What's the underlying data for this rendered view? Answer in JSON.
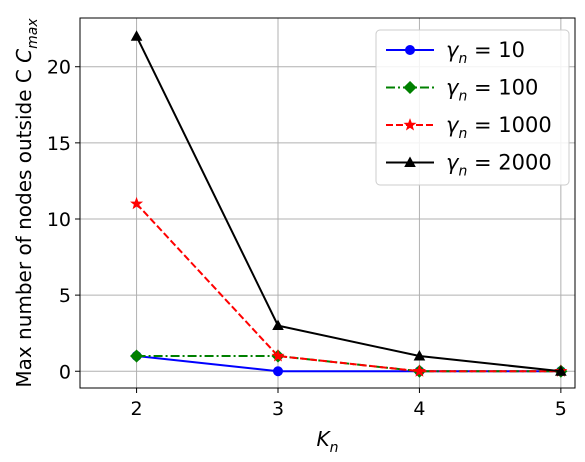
{
  "chart_data": {
    "type": "line",
    "xlabel_main": "K",
    "xlabel_sub": "n",
    "ylabel_main": "Max number of nodes outside C",
    "ylabel_sub": "max",
    "xlim": [
      1.6,
      5.1
    ],
    "ylim": [
      -1.1,
      23.2
    ],
    "xticks": [
      2,
      3,
      4,
      5
    ],
    "yticks": [
      0,
      5,
      10,
      15,
      20
    ],
    "grid": true,
    "legend_position": "top-right",
    "x": [
      2,
      3,
      4,
      5
    ],
    "series": [
      {
        "name": "10",
        "legend_prefix": "γ",
        "legend_sub": "n",
        "legend_eq": " = ",
        "values": [
          1,
          0,
          0,
          0
        ],
        "color": "#0000ff",
        "marker": "circle",
        "linestyle": "solid"
      },
      {
        "name": "100",
        "legend_prefix": "γ",
        "legend_sub": "n",
        "legend_eq": " = ",
        "values": [
          1,
          1,
          0,
          0
        ],
        "color": "#008000",
        "marker": "diamond",
        "linestyle": "dashdot"
      },
      {
        "name": "1000",
        "legend_prefix": "γ",
        "legend_sub": "n",
        "legend_eq": " = ",
        "values": [
          11,
          1,
          0,
          0
        ],
        "color": "#ff0000",
        "marker": "star",
        "linestyle": "dashed"
      },
      {
        "name": "2000",
        "legend_prefix": "γ",
        "legend_sub": "n",
        "legend_eq": " = ",
        "values": [
          22,
          3,
          1,
          0
        ],
        "color": "#000000",
        "marker": "triangle",
        "linestyle": "solid"
      }
    ]
  }
}
